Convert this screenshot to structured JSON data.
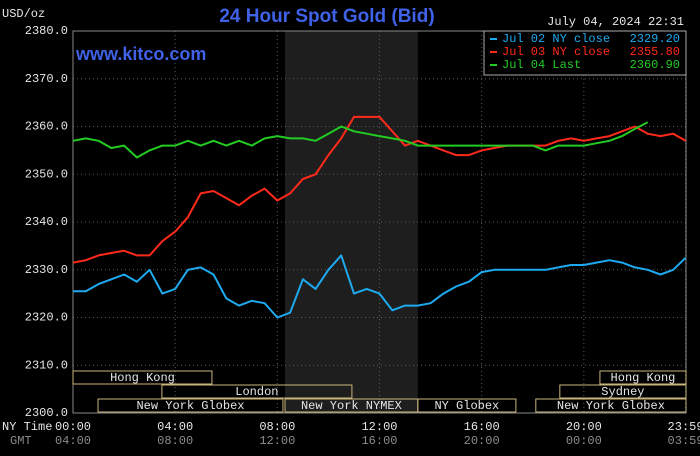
{
  "chart_data": {
    "type": "line",
    "title": "24 Hour Spot Gold (Bid)",
    "subtitle": "July 04, 2024 22:31",
    "watermark": "www.kitco.com",
    "ylabel": "USD/oz",
    "xlabel": "NY Time",
    "x2label": "GMT",
    "xlim": [
      0,
      24
    ],
    "ylim": [
      2300,
      2380
    ],
    "xticks": [
      {
        "value": 0,
        "label": "00:00"
      },
      {
        "value": 4,
        "label": "04:00"
      },
      {
        "value": 8,
        "label": "08:00"
      },
      {
        "value": 12,
        "label": "12:00"
      },
      {
        "value": 16,
        "label": "16:00"
      },
      {
        "value": 20,
        "label": "20:00"
      },
      {
        "value": 23.983,
        "label": "23:59"
      }
    ],
    "x2tick_labels": [
      "04:00",
      "08:00",
      "12:00",
      "16:00",
      "20:00",
      "00:00",
      "03:59"
    ],
    "yticks": [
      {
        "value": 2300,
        "label": "2300.0"
      },
      {
        "value": 2310,
        "label": "2310.0"
      },
      {
        "value": 2320,
        "label": "2320.0"
      },
      {
        "value": 2330,
        "label": "2330.0"
      },
      {
        "value": 2340,
        "label": "2340.0"
      },
      {
        "value": 2350,
        "label": "2350.0"
      },
      {
        "value": 2360,
        "label": "2360.0"
      },
      {
        "value": 2370,
        "label": "2370.0"
      },
      {
        "value": 2380,
        "label": "2380.0"
      }
    ],
    "grid": true,
    "shaded_x": [
      8.3,
      13.5
    ],
    "sessions": [
      {
        "label": "Hong Kong",
        "start": 0,
        "end": 5.44,
        "row": 0
      },
      {
        "label": "London",
        "start": 3.48,
        "end": 10.92,
        "row": 1
      },
      {
        "label": "New York Globex",
        "start": 0.98,
        "end": 8.22,
        "row": 2
      },
      {
        "label": "New York NYMEX",
        "start": 8.3,
        "end": 13.5,
        "row": 2
      },
      {
        "label": "NY Globex",
        "start": 13.5,
        "end": 17.34,
        "row": 2
      },
      {
        "label": "Hong Kong",
        "start": 20.63,
        "end": 24,
        "row": 0
      },
      {
        "label": "Sydney",
        "start": 19.06,
        "end": 24,
        "row": 1
      },
      {
        "label": "New York Globex",
        "start": 18.12,
        "end": 24,
        "row": 2
      }
    ],
    "series": [
      {
        "name": "Jul 02 NY close",
        "legend_value": {
          "value": 2329.2,
          "label": "2329.20"
        },
        "color": "#1eaaf0",
        "x": [
          0,
          0.5,
          1,
          1.5,
          2,
          2.5,
          3,
          3.5,
          4,
          4.5,
          5,
          5.5,
          6,
          6.5,
          7,
          7.5,
          8,
          8.5,
          9,
          9.5,
          10,
          10.5,
          11,
          11.5,
          12,
          12.5,
          13,
          13.5,
          14,
          14.5,
          15,
          15.5,
          16,
          16.5,
          17,
          17.5,
          18,
          18.5,
          19,
          19.5,
          20,
          20.5,
          21,
          21.5,
          22,
          22.5,
          23,
          23.5,
          23.983
        ],
        "values": [
          2325.5,
          2325.5,
          2327,
          2328,
          2329,
          2327.5,
          2330,
          2325,
          2326,
          2330,
          2330.5,
          2329,
          2324,
          2322.5,
          2323.5,
          2323,
          2320,
          2321,
          2328,
          2326,
          2330,
          2333,
          2325,
          2326,
          2325,
          2321.5,
          2322.5,
          2322.5,
          2323,
          2325,
          2326.5,
          2327.5,
          2329.5,
          2330,
          2330,
          2330,
          2330,
          2330,
          2330.5,
          2331,
          2331,
          2331.5,
          2332,
          2331.5,
          2330.5,
          2330,
          2329,
          2330,
          2332.5
        ]
      },
      {
        "name": "Jul 03 NY close",
        "legend_value": {
          "value": 2355.8,
          "label": "2355.80"
        },
        "color": "#ff2a1a",
        "x": [
          0,
          0.5,
          1,
          1.5,
          2,
          2.5,
          3,
          3.5,
          4,
          4.5,
          5,
          5.5,
          6,
          6.5,
          7,
          7.5,
          8,
          8.5,
          9,
          9.5,
          10,
          10.5,
          11,
          11.5,
          12,
          12.5,
          13,
          13.5,
          14,
          14.5,
          15,
          15.5,
          16,
          16.5,
          17,
          17.5,
          18,
          18.5,
          19,
          19.5,
          20,
          20.5,
          21,
          21.5,
          22,
          22.5,
          23,
          23.5,
          23.983
        ],
        "values": [
          2331.5,
          2332,
          2333,
          2333.5,
          2334,
          2333,
          2333,
          2336,
          2338,
          2341,
          2346,
          2346.5,
          2345,
          2343.5,
          2345.5,
          2347,
          2344.5,
          2346,
          2349,
          2350,
          2354,
          2357.5,
          2362,
          2362,
          2362,
          2359,
          2356,
          2357,
          2356,
          2355,
          2354,
          2354,
          2355,
          2355.5,
          2356,
          2356,
          2356,
          2356,
          2357,
          2357.5,
          2357,
          2357.5,
          2358,
          2359,
          2360,
          2358.5,
          2358,
          2358.5,
          2357
        ]
      },
      {
        "name": "Jul 04 Last",
        "legend_value": {
          "value": 2360.9,
          "label": "2360.90"
        },
        "color": "#22cc22",
        "x": [
          0,
          0.5,
          1,
          1.5,
          2,
          2.5,
          3,
          3.5,
          4,
          4.5,
          5,
          5.5,
          6,
          6.5,
          7,
          7.5,
          8,
          8.5,
          9,
          9.5,
          10,
          10.5,
          11,
          11.5,
          12,
          12.5,
          13,
          13.5,
          14,
          14.5,
          15,
          15.5,
          16,
          16.5,
          17,
          17.5,
          18,
          18.5,
          19,
          19.5,
          20,
          20.5,
          21,
          21.5,
          22,
          22.5
        ],
        "values": [
          2357,
          2357.5,
          2357,
          2355.5,
          2356,
          2353.5,
          2355,
          2356,
          2356,
          2357,
          2356,
          2357,
          2356,
          2357,
          2356,
          2357.5,
          2358,
          2357.5,
          2357.5,
          2357,
          2358.5,
          2360,
          2359,
          2358.5,
          2358,
          2357.5,
          2357,
          2356,
          2356,
          2356,
          2356,
          2356,
          2356,
          2356,
          2356,
          2356,
          2356,
          2355,
          2356,
          2356,
          2356,
          2356.5,
          2357,
          2358,
          2359.5,
          2360.9
        ]
      }
    ]
  }
}
